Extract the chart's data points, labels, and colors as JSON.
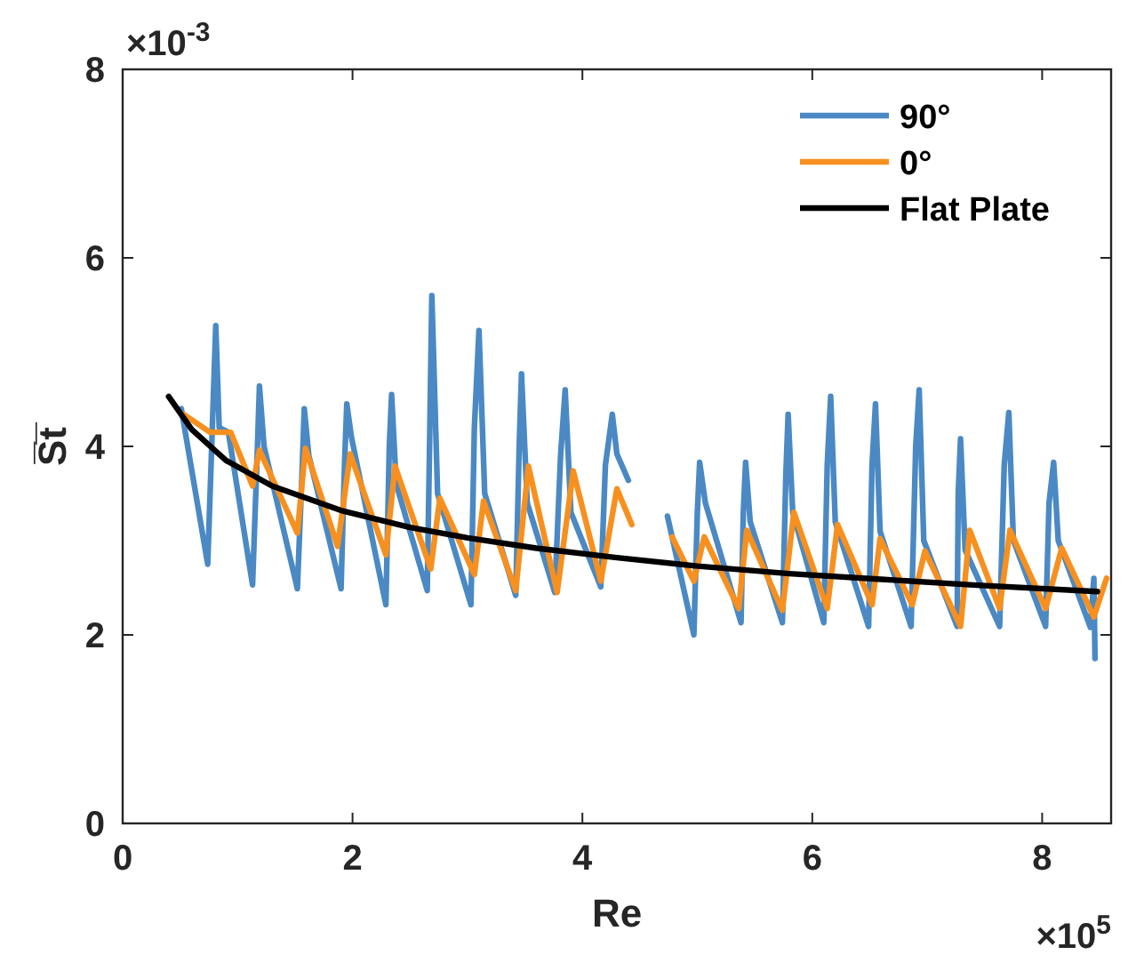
{
  "chart_data": {
    "type": "line",
    "xlabel": "Re",
    "ylabel": "S̅t̅",
    "xlim": [
      0,
      8.6
    ],
    "ylim": [
      0,
      8
    ],
    "xticks": [
      0,
      2,
      4,
      6,
      8
    ],
    "yticks": [
      0,
      2,
      4,
      6,
      8
    ],
    "annotations": [
      "×10$^{-3}$",
      "×10$^{5}$"
    ],
    "grid": false,
    "legend": "top right",
    "line_style": "solid",
    "marker": "none",
    "series": [
      {
        "name": "90°",
        "color": "#4a89c4",
        "x": [
          0.51,
          0.74,
          0.78,
          0.81,
          0.84,
          0.92,
          1.13,
          1.17,
          1.19,
          1.23,
          1.52,
          1.56,
          1.58,
          1.62,
          1.9,
          1.93,
          1.95,
          1.99,
          2.29,
          2.32,
          2.34,
          2.38,
          2.65,
          2.67,
          2.69,
          2.74,
          3.03,
          3.06,
          3.1,
          3.15,
          3.42,
          3.45,
          3.47,
          3.52,
          3.76,
          3.81,
          3.85,
          3.9,
          4.16,
          4.2,
          4.26,
          4.3,
          4.4
        ],
        "values": [
          4.4,
          2.75,
          4.2,
          5.28,
          4.2,
          4.15,
          2.53,
          3.9,
          4.64,
          4.0,
          2.49,
          3.7,
          4.4,
          3.9,
          2.49,
          3.8,
          4.45,
          4.1,
          2.32,
          4.0,
          4.55,
          3.6,
          2.47,
          4.0,
          5.6,
          3.5,
          2.32,
          4.2,
          5.23,
          3.5,
          2.42,
          4.0,
          4.77,
          3.4,
          2.45,
          3.9,
          4.6,
          3.3,
          2.51,
          3.8,
          4.34,
          3.92,
          3.64
        ]
      },
      {
        "color": "#4a89c4",
        "x": [
          4.74,
          4.97,
          5.0,
          5.02,
          5.07,
          5.38,
          5.4,
          5.42,
          5.46,
          5.74,
          5.77,
          5.79,
          5.83,
          6.1,
          6.13,
          6.16,
          6.2,
          6.49,
          6.52,
          6.55,
          6.59,
          6.86,
          6.9,
          6.93,
          6.97,
          7.26,
          7.27,
          7.29,
          7.33,
          7.63,
          7.67,
          7.71,
          7.75,
          8.03,
          8.06,
          8.1,
          8.14,
          8.42,
          8.45,
          8.46
        ],
        "values": [
          3.26,
          2.0,
          3.3,
          3.83,
          3.4,
          2.13,
          3.3,
          3.83,
          3.2,
          2.13,
          3.7,
          4.34,
          3.3,
          2.13,
          3.8,
          4.53,
          3.2,
          2.09,
          3.8,
          4.45,
          3.1,
          2.09,
          4.0,
          4.6,
          3.0,
          2.09,
          3.5,
          4.08,
          2.9,
          2.09,
          3.8,
          4.36,
          3.0,
          2.09,
          3.4,
          3.83,
          3.0,
          2.08,
          2.6,
          1.75
        ]
      },
      {
        "name": "0°",
        "color": "#f7901e",
        "x": [
          0.53,
          0.76,
          0.94,
          1.13,
          1.19,
          1.52,
          1.59,
          1.87,
          1.98,
          2.29,
          2.37,
          2.68,
          2.76,
          3.06,
          3.14,
          3.42,
          3.53,
          3.78,
          3.92,
          4.16,
          4.3,
          4.43
        ],
        "values": [
          4.34,
          4.15,
          4.15,
          3.58,
          3.96,
          3.08,
          3.98,
          2.94,
          3.92,
          2.85,
          3.79,
          2.7,
          3.45,
          2.64,
          3.42,
          2.47,
          3.79,
          2.45,
          3.74,
          2.57,
          3.55,
          3.17
        ]
      },
      {
        "color": "#f7901e",
        "x": [
          4.78,
          4.97,
          5.06,
          5.36,
          5.43,
          5.74,
          5.84,
          6.13,
          6.22,
          6.52,
          6.59,
          6.87,
          6.98,
          7.29,
          7.37,
          7.63,
          7.72,
          8.03,
          8.17,
          8.45,
          8.56
        ],
        "values": [
          3.04,
          2.57,
          3.04,
          2.28,
          3.11,
          2.26,
          3.3,
          2.28,
          3.17,
          2.32,
          3.02,
          2.32,
          2.89,
          2.09,
          3.11,
          2.28,
          3.11,
          2.28,
          2.92,
          2.19,
          2.6
        ]
      },
      {
        "name": "Flat Plate",
        "color": "#000000",
        "x": [
          0.4,
          0.6,
          0.9,
          1.3,
          1.9,
          2.5,
          3.0,
          3.6,
          4.3,
          5.0,
          5.8,
          6.6,
          7.4,
          8.48
        ],
        "values": [
          4.53,
          4.18,
          3.85,
          3.58,
          3.32,
          3.14,
          3.03,
          2.92,
          2.82,
          2.73,
          2.65,
          2.59,
          2.53,
          2.46
        ]
      }
    ]
  }
}
